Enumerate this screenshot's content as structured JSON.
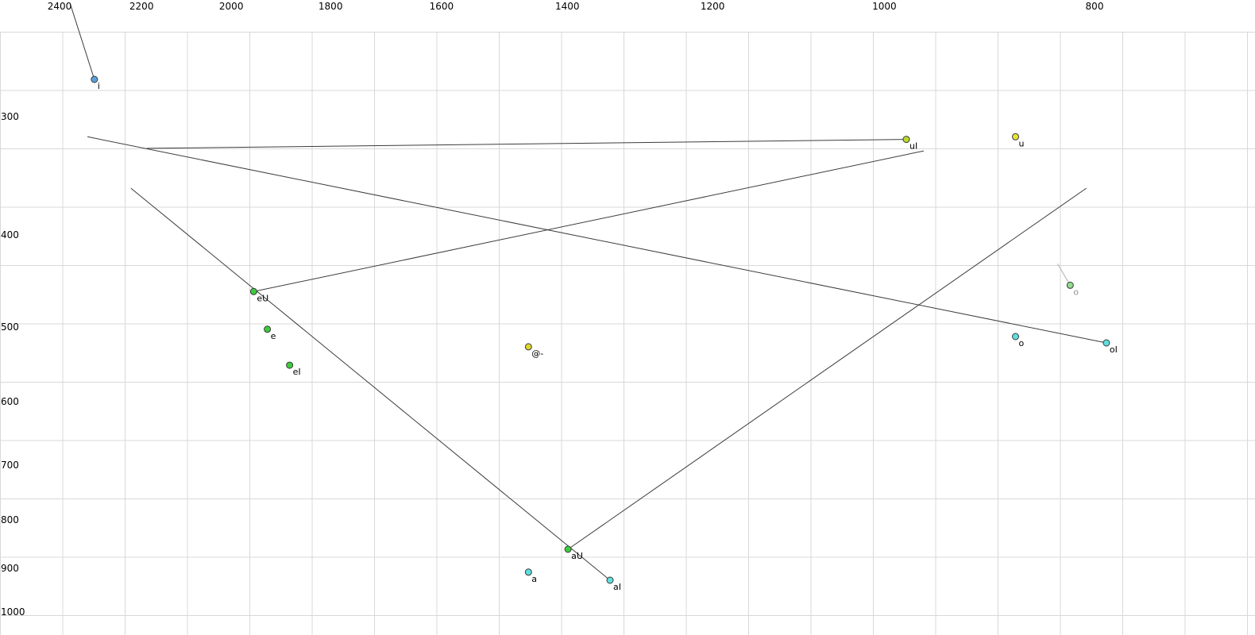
{
  "chart_data": {
    "type": "scatter",
    "title": "",
    "x_axis": {
      "position": "top",
      "scale": "log",
      "reversed": true,
      "ticks": [
        2400,
        2200,
        2000,
        1800,
        1600,
        1400,
        1200,
        1000,
        800
      ]
    },
    "y_axis": {
      "position": "left",
      "scale": "log",
      "ticks": [
        300,
        400,
        500,
        600,
        700,
        800,
        900,
        1000
      ]
    },
    "grid": true,
    "points": [
      {
        "label": "i",
        "f2": 2313,
        "f1": 274,
        "color": "#5aa0dc",
        "label_color": "#000000"
      },
      {
        "label": "uI",
        "f2": 977,
        "f1": 317,
        "color": "#b9d92e",
        "label_color": "#000000"
      },
      {
        "label": "u",
        "f2": 870,
        "f1": 315,
        "color": "#e8e532",
        "label_color": "#000000"
      },
      {
        "label": "eU",
        "f2": 1953,
        "f1": 459,
        "color": "#3dcc3d",
        "label_color": "#000000"
      },
      {
        "label": "e",
        "f2": 1925,
        "f1": 503,
        "color": "#3dcc3d",
        "label_color": "#000000"
      },
      {
        "label": "eI",
        "f2": 1880,
        "f1": 549,
        "color": "#3dcc3d",
        "label_color": "#000000"
      },
      {
        "label": "@-",
        "f2": 1459,
        "f1": 525,
        "color": "#ddd830",
        "label_color": "#000000"
      },
      {
        "label": "o",
        "f2": 821,
        "f1": 452,
        "color": "#8fdc8f",
        "label_color": "#9a9a9a"
      },
      {
        "label": "o",
        "f2": 870,
        "f1": 512,
        "color": "#5fdede",
        "label_color": "#000000"
      },
      {
        "label": "oI",
        "f2": 790,
        "f1": 520,
        "color": "#5fdede",
        "label_color": "#000000"
      },
      {
        "label": "aU",
        "f2": 1399,
        "f1": 859,
        "color": "#3dcc3d",
        "label_color": "#000000"
      },
      {
        "label": "a",
        "f2": 1459,
        "f1": 908,
        "color": "#5fdede",
        "label_color": "#000000"
      },
      {
        "label": "aI",
        "f2": 1338,
        "f1": 926,
        "color": "#5fdede",
        "label_color": "#000000"
      }
    ],
    "trajectories": [
      {
        "name": "i-tail",
        "from": {
          "f2": 2373,
          "f1": 228
        },
        "to": {
          "f2": 2313,
          "f1": 274
        }
      },
      {
        "name": "uI-glide",
        "from": {
          "f2": 2188,
          "f1": 324
        },
        "to": {
          "f2": 977,
          "f1": 317
        }
      },
      {
        "name": "eU-glide",
        "from": {
          "f2": 1953,
          "f1": 459
        },
        "to": {
          "f2": 959,
          "f1": 326
        }
      },
      {
        "name": "oI-glide",
        "from": {
          "f2": 2330,
          "f1": 315
        },
        "to": {
          "f2": 790,
          "f1": 520
        }
      },
      {
        "name": "aI-glide",
        "from": {
          "f2": 2225,
          "f1": 357
        },
        "to": {
          "f2": 1338,
          "f1": 926
        }
      },
      {
        "name": "aU-glide",
        "from": {
          "f2": 1399,
          "f1": 859
        },
        "to": {
          "f2": 807,
          "f1": 357
        }
      },
      {
        "name": "o-tail",
        "from": {
          "f2": 832,
          "f1": 429
        },
        "to": {
          "f2": 821,
          "f1": 452
        },
        "color": "#b0b0b0"
      }
    ]
  },
  "colors": {
    "grid": "#d8d8d8",
    "line": "#3c3c3c",
    "point_stroke": "#3a3a3a",
    "tick_text": "#000000"
  }
}
